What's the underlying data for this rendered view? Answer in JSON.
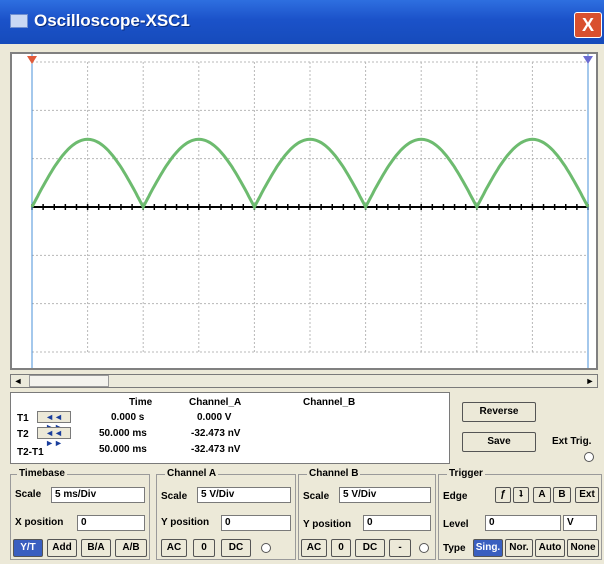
{
  "window": {
    "title": "Oscilloscope-XSC1",
    "close_label": "X"
  },
  "readout": {
    "headers": {
      "time": "Time",
      "channel_a": "Channel_A",
      "channel_b": "Channel_B"
    },
    "rows": [
      {
        "label": "T1",
        "time": "0.000 s",
        "a": "0.000 V",
        "b": ""
      },
      {
        "label": "T2",
        "time": "50.000 ms",
        "a": "-32.473 nV",
        "b": ""
      },
      {
        "label": "T2-T1",
        "time": "50.000 ms",
        "a": "-32.473 nV",
        "b": ""
      }
    ],
    "arrows": "◄◄ ►►"
  },
  "buttons": {
    "reverse": "Reverse",
    "save": "Save",
    "ext_trig": "Ext Trig."
  },
  "timebase": {
    "title": "Timebase",
    "scale_label": "Scale",
    "scale": "5 ms/Div",
    "xpos_label": "X position",
    "xpos": "0",
    "modes": [
      "Y/T",
      "Add",
      "B/A",
      "A/B"
    ]
  },
  "channel_a": {
    "title": "Channel A",
    "scale_label": "Scale",
    "scale": "5  V/Div",
    "ypos_label": "Y position",
    "ypos": "0",
    "coupling": [
      "AC",
      "0",
      "DC"
    ]
  },
  "channel_b": {
    "title": "Channel B",
    "scale_label": "Scale",
    "scale": "5  V/Div",
    "ypos_label": "Y position",
    "ypos": "0",
    "coupling": [
      "AC",
      "0",
      "DC",
      "-"
    ]
  },
  "trigger": {
    "title": "Trigger",
    "edge_label": "Edge",
    "edges": [
      "ƒ",
      "ʇ",
      "A",
      "B",
      "Ext"
    ],
    "level_label": "Level",
    "level": "0",
    "level_unit": "V",
    "type_label": "Type",
    "types": [
      "Sing.",
      "Nor.",
      "Auto",
      "None"
    ]
  },
  "scope": {
    "trace_color": "#6dbb6f",
    "grid_color": "#b8b8b8",
    "background": "#ffffff",
    "axis_color": "#000000",
    "waveform": "full-wave rectified sine",
    "peaks": 5
  }
}
